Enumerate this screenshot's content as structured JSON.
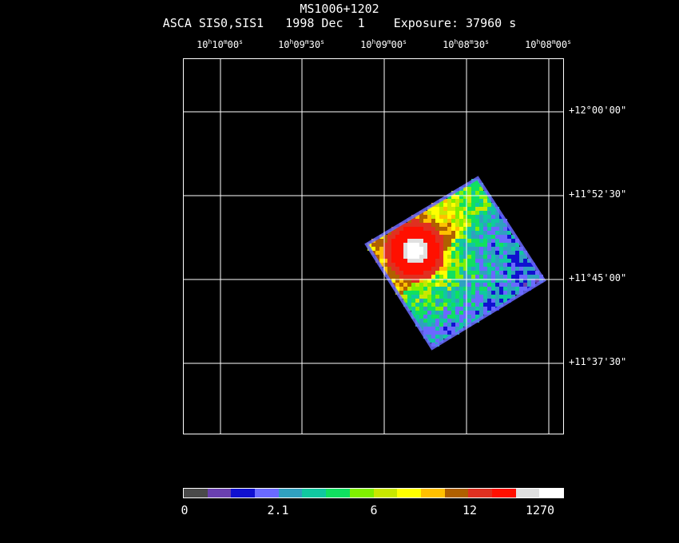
{
  "header": {
    "object": "MS1006+1202",
    "info": "ASCA SIS0,SIS1   1998 Dec  1    Exposure: 37960 s"
  },
  "ra_labels": [
    {
      "h": "10",
      "m": "10",
      "s": "00"
    },
    {
      "h": "10",
      "m": "09",
      "s": "30"
    },
    {
      "h": "10",
      "m": "09",
      "s": "00"
    },
    {
      "h": "10",
      "m": "08",
      "s": "30"
    },
    {
      "h": "10",
      "m": "08",
      "s": "00"
    }
  ],
  "dec_labels": [
    {
      "d": "+12",
      "m": "00",
      "s": "00"
    },
    {
      "d": "+11",
      "m": "52",
      "s": "30"
    },
    {
      "d": "+11",
      "m": "45",
      "s": "00"
    },
    {
      "d": "+11",
      "m": "37",
      "s": "30"
    }
  ],
  "colorbar": {
    "colors": [
      "#4a4a4a",
      "#6a40b0",
      "#1010d0",
      "#6a6aff",
      "#30a0c0",
      "#10c8a0",
      "#10e060",
      "#80f000",
      "#c8e800",
      "#ffff00",
      "#ffc000",
      "#b06000",
      "#e03020",
      "#ff1000",
      "#e0e0e0",
      "#ffffff"
    ],
    "labels": [
      "0",
      "2.1",
      "6",
      "12",
      "1270"
    ]
  }
}
